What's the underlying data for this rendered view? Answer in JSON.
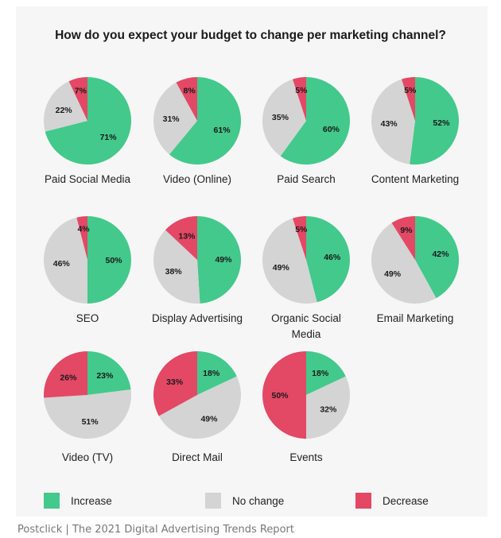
{
  "chart_data": {
    "type": "pie",
    "title": "How do you expect your budget to change per marketing channel?",
    "legend": [
      "Increase",
      "No change",
      "Decrease"
    ],
    "legend_position": "bottom",
    "colors": {
      "Increase": "#43c98b",
      "No change": "#d4d4d4",
      "Decrease": "#e34865"
    },
    "charts": [
      {
        "label": "Paid Social Media",
        "values": [
          71,
          22,
          7
        ]
      },
      {
        "label": "Video (Online)",
        "values": [
          61,
          31,
          8
        ]
      },
      {
        "label": "Paid Search",
        "values": [
          60,
          35,
          5
        ]
      },
      {
        "label": "Content Marketing",
        "values": [
          52,
          43,
          5
        ]
      },
      {
        "label": "SEO",
        "values": [
          50,
          46,
          4
        ]
      },
      {
        "label": "Display Advertising",
        "values": [
          49,
          38,
          13
        ]
      },
      {
        "label": "Organic Social Media",
        "values": [
          46,
          49,
          5
        ]
      },
      {
        "label": "Email Marketing",
        "values": [
          42,
          49,
          9
        ]
      },
      {
        "label": "Video (TV)",
        "values": [
          23,
          51,
          26
        ]
      },
      {
        "label": "Direct Mail",
        "values": [
          18,
          49,
          33
        ]
      },
      {
        "label": "Events",
        "values": [
          18,
          32,
          50
        ]
      }
    ]
  },
  "caption": "Postclick | The 2021 Digital Advertising Trends Report"
}
